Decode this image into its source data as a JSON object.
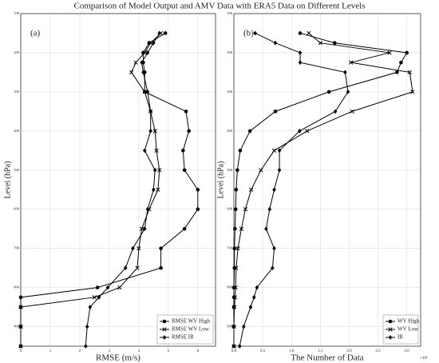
{
  "title": "Comparison of Model Output and AMV Data with ERA5 Data on Different Levels",
  "chart_data": [
    {
      "type": "line",
      "panel_label": "(a)",
      "xlabel": "RMSE (m/s)",
      "ylabel": "Level (hPa)",
      "levels": [
        150,
        175,
        200,
        225,
        250,
        300,
        350,
        400,
        450,
        500,
        550,
        600,
        650,
        700,
        750,
        800,
        825,
        850,
        900,
        950
      ],
      "xlim": [
        0,
        6.6
      ],
      "xticks": [
        0,
        1,
        2,
        3,
        4,
        5,
        6
      ],
      "ylim": [
        950,
        100
      ],
      "yticks": [
        100,
        200,
        300,
        400,
        500,
        600,
        700,
        800,
        900
      ],
      "grid": true,
      "legend": "lower right",
      "series": [
        {
          "name": "RMSE WV High",
          "color": "#000000",
          "marker": "circle",
          "values": [
            4.9,
            4.35,
            4.15,
            4.15,
            4.2,
            4.2,
            5.6,
            5.7,
            5.5,
            5.55,
            6.0,
            6.0,
            5.55,
            4.75,
            4.75,
            2.6,
            0,
            0,
            0,
            0
          ]
        },
        {
          "name": "RMSE WV Low",
          "color": "#000000",
          "marker": "x",
          "values": [
            4.75,
            4.4,
            4.2,
            3.9,
            3.75,
            4.2,
            4.4,
            4.55,
            4.6,
            4.7,
            4.65,
            4.35,
            4.1,
            4.0,
            3.95,
            3.35,
            2.5,
            0,
            0,
            0
          ]
        },
        {
          "name": "RMSE IR",
          "color": "#000000",
          "marker": "diamond",
          "values": [
            4.7,
            4.5,
            4.3,
            4.1,
            4.15,
            4.3,
            4.4,
            4.4,
            4.2,
            4.55,
            4.5,
            4.3,
            4.2,
            3.8,
            3.55,
            2.95,
            2.65,
            2.35,
            2.25,
            2.2
          ]
        }
      ]
    },
    {
      "type": "line",
      "panel_label": "(b)",
      "xlabel": "The Number of Data",
      "ylabel": "Level (hPa)",
      "offset_label": "×10⁵",
      "levels": [
        150,
        175,
        200,
        225,
        250,
        300,
        350,
        400,
        450,
        500,
        550,
        600,
        650,
        700,
        750,
        800,
        825,
        850,
        900,
        950
      ],
      "xlim": [
        0,
        3.24
      ],
      "xticks": [
        {
          "value": 0,
          "label": "0.0"
        },
        0.5,
        {
          "value": 1,
          "label": "1.0"
        },
        1.5,
        {
          "value": 2,
          "label": "2.0"
        },
        2.5,
        {
          "value": 3,
          "label": "3.0"
        }
      ],
      "ylim": [
        950,
        100
      ],
      "yticks": [
        100,
        200,
        300,
        400,
        500,
        600,
        700,
        800,
        900
      ],
      "grid": true,
      "legend": "lower right",
      "series": [
        {
          "name": "WV High",
          "color": "#000000",
          "marker": "circle",
          "values": [
            1.15,
            1.75,
            3.0,
            2.9,
            2.83,
            1.65,
            0.72,
            0.28,
            0.11,
            0.06,
            0.04,
            0.03,
            0.02,
            0.01,
            0.01,
            0,
            0,
            0,
            0,
            0
          ]
        },
        {
          "name": "WV Low",
          "color": "#000000",
          "marker": "x",
          "values": [
            1.3,
            1.5,
            2.7,
            2.03,
            3.05,
            3.1,
            2.05,
            1.27,
            0.7,
            0.47,
            0.3,
            0.2,
            0.13,
            0.07,
            0.04,
            0.03,
            0.02,
            0.01,
            0,
            0
          ]
        },
        {
          "name": "IR",
          "color": "#000000",
          "marker": "diamond",
          "values": [
            0.37,
            0.72,
            1.15,
            1.15,
            1.93,
            1.98,
            1.76,
            1.14,
            0.79,
            0.79,
            0.7,
            0.62,
            0.56,
            0.7,
            0.67,
            0.4,
            0.35,
            0.29,
            0.17,
            0.1
          ]
        }
      ]
    }
  ]
}
